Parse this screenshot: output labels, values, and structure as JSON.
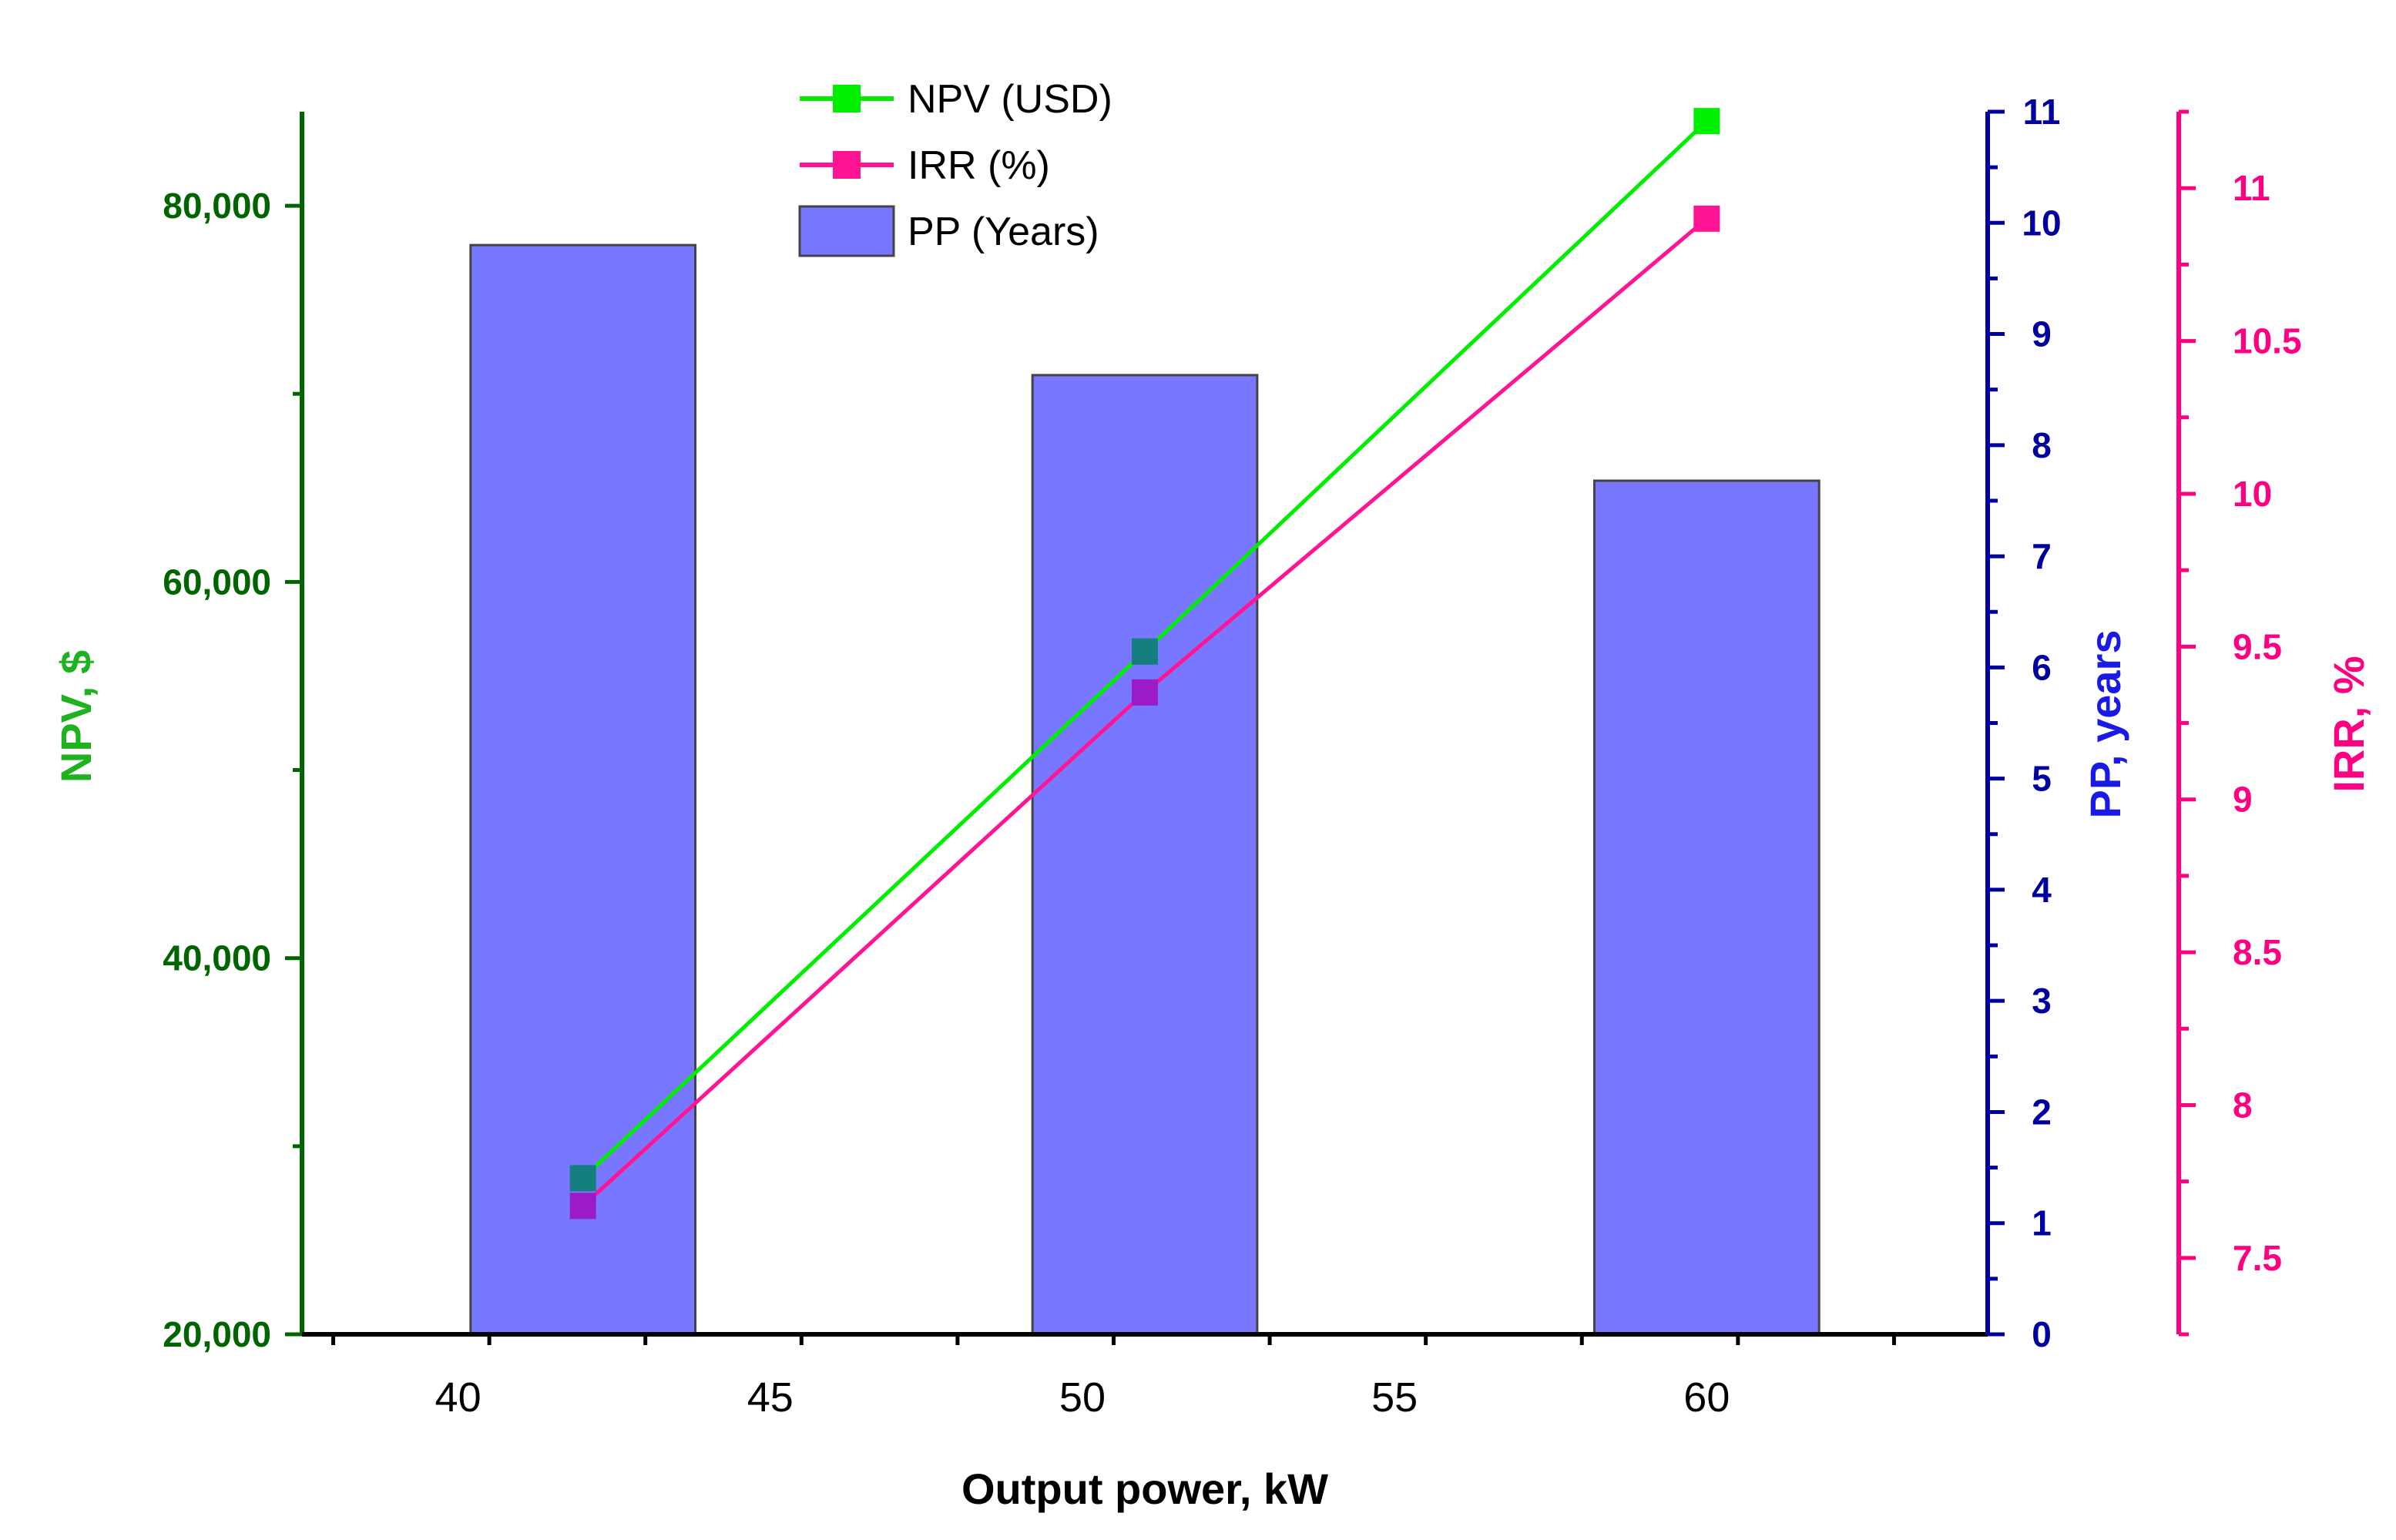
{
  "chart_data": {
    "type": "bar+line",
    "x_axis": {
      "label": "Output power, kW",
      "range": [
        37.5,
        64.5
      ],
      "ticks": [
        "40",
        "45",
        "50",
        "55",
        "60"
      ],
      "tick_values": [
        40,
        45,
        50,
        55,
        60
      ],
      "minor_step": 2.5
    },
    "y_npv_axis": {
      "label": "NPV, $",
      "color": "#006400",
      "range": [
        20000,
        85000
      ],
      "ticks": [
        "20,000",
        "40,000",
        "60,000",
        "80,000"
      ],
      "tick_values": [
        20000,
        40000,
        60000,
        80000
      ],
      "minor_step": 10000
    },
    "y_pp_axis": {
      "label": "PP, years",
      "color": "#0000A0",
      "range": [
        0,
        11
      ],
      "ticks": [
        "0",
        "1",
        "2",
        "3",
        "4",
        "5",
        "6",
        "7",
        "8",
        "9",
        "10",
        "11"
      ],
      "tick_values": [
        0,
        1,
        2,
        3,
        4,
        5,
        6,
        7,
        8,
        9,
        10,
        11
      ],
      "minor_step": 0.5
    },
    "y_irr_axis": {
      "label": "IRR, %",
      "color": "#FF0080",
      "range": [
        7.25,
        11.25
      ],
      "ticks": [
        "7.5",
        "8",
        "8.5",
        "9",
        "9.5",
        "10",
        "10.5",
        "11"
      ],
      "tick_values": [
        7.5,
        8,
        8.5,
        9,
        9.5,
        10,
        10.5,
        11
      ],
      "minor_step": 0.25
    },
    "series": [
      {
        "name": "NPV (USD)",
        "kind": "line",
        "axis": "npv",
        "color": "#00EE00",
        "x": [
          42,
          51,
          60
        ],
        "values": [
          28300,
          56300,
          84500
        ],
        "marker_colors": [
          "#157F7F",
          "#157F7F",
          "#00EE00"
        ]
      },
      {
        "name": "IRR (%)",
        "kind": "line",
        "axis": "irr",
        "color": "#FF1493",
        "x": [
          42,
          51,
          60
        ],
        "values": [
          7.67,
          9.35,
          10.9
        ],
        "marker_colors": [
          "#9B1BC7",
          "#9B1BC7",
          "#FF1493"
        ]
      },
      {
        "name": "PP (Years)",
        "kind": "bar",
        "axis": "pp",
        "color": "#7777FF",
        "x": [
          42,
          51,
          60
        ],
        "values": [
          9.8,
          8.63,
          7.68
        ],
        "bar_width": 3.6
      }
    ],
    "legend": {
      "position": "top-center",
      "items": [
        "NPV (USD)",
        "IRR (%)",
        "PP (Years)"
      ]
    },
    "grid": false
  }
}
